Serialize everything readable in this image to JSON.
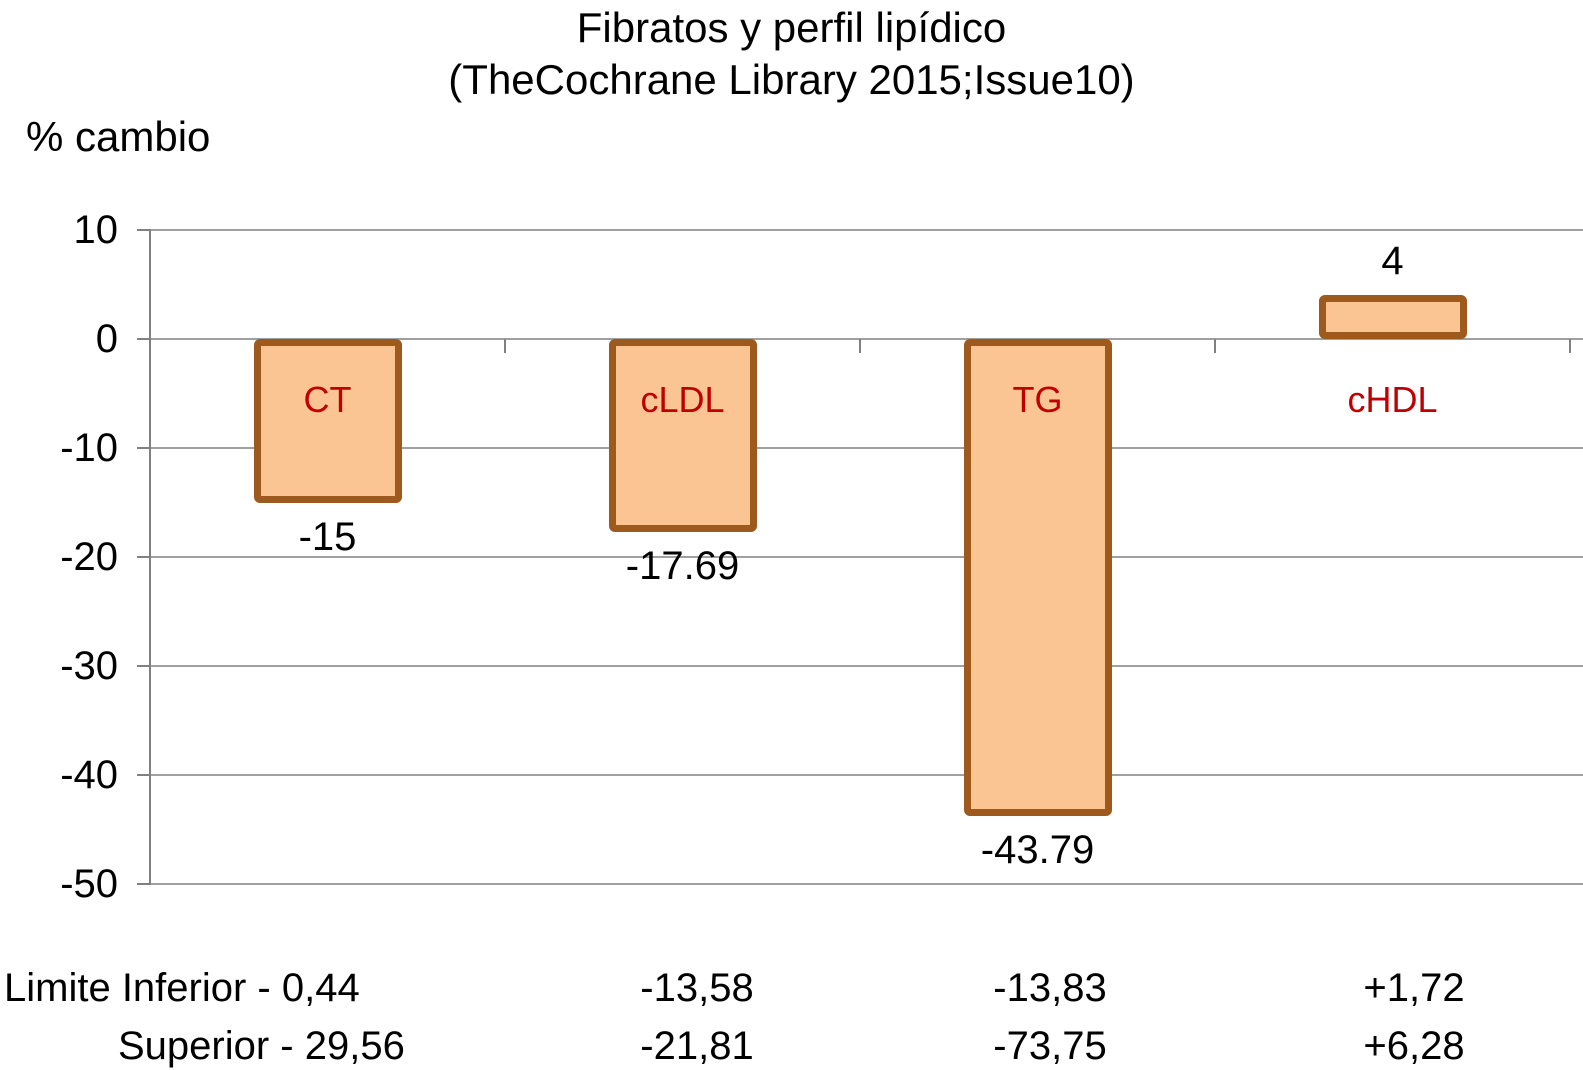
{
  "title": {
    "line1": "Fibratos y perfil lipídico",
    "line2": "(TheCochrane Library 2015;Issue10)"
  },
  "chart_data": {
    "type": "bar",
    "title": "Fibratos y perfil lipídico (TheCochrane Library 2015;Issue10)",
    "ylabel": "% cambio",
    "xlabel": "",
    "categories": [
      "CT",
      "cLDL",
      "TG",
      "cHDL"
    ],
    "values": [
      -15,
      -17.69,
      -43.79,
      4
    ],
    "data_labels": [
      "-15",
      "-17.69",
      "-43.79",
      "4"
    ],
    "ylim": [
      -50,
      10
    ],
    "y_ticks": [
      10,
      0,
      -10,
      -20,
      -30,
      -40,
      -50
    ],
    "grid": true,
    "legend": false,
    "colors": {
      "bar_fill": "#FAC493",
      "bar_border": "#9E591C",
      "category_label": "#C00000",
      "gridline": "#A0A0A0",
      "axis": "#808080",
      "text": "#000000"
    },
    "limits_table": {
      "row1_label": "Limite Inferior - 0,44",
      "row2_label": "Superior - 29,56",
      "row1_values": [
        "-13,58",
        "-13,83",
        "+1,72"
      ],
      "row2_values": [
        "-21,81",
        "-73,75",
        "+6,28"
      ],
      "limite_inferior_by_category": [
        "-0,44",
        "-13,58",
        "-13,83",
        "+1,72"
      ],
      "limite_superior_by_category": [
        "-29,56",
        "-21,81",
        "-73,75",
        "+6,28"
      ]
    }
  }
}
